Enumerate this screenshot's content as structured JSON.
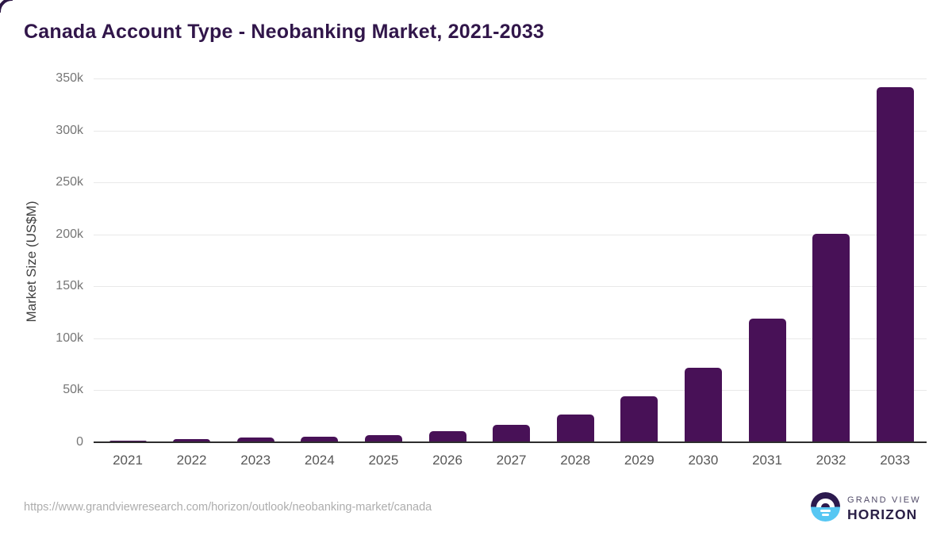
{
  "chart_data": {
    "type": "bar",
    "title": "Canada Account Type - Neobanking Market, 2021-2033",
    "categories": [
      "2021",
      "2022",
      "2023",
      "2024",
      "2025",
      "2026",
      "2027",
      "2028",
      "2029",
      "2030",
      "2031",
      "2032",
      "2033"
    ],
    "values": [
      1800,
      3300,
      4400,
      5400,
      6900,
      11000,
      17000,
      27000,
      44200,
      72000,
      119000,
      200600,
      341600
    ],
    "xlabel": "",
    "ylabel": "Market Size (US$M)",
    "ylim": [
      0,
      350000
    ],
    "ytick_step": 50000,
    "ytick_labels": [
      "0",
      "50k",
      "100k",
      "150k",
      "200k",
      "250k",
      "300k",
      "350k"
    ],
    "grid": "horizontal",
    "legend": "none",
    "bar_color": "#481157"
  },
  "footer": {
    "source_url": "https://www.grandviewresearch.com/horizon/outlook/neobanking-market/canada",
    "logo": {
      "line1": "GRAND VIEW",
      "line2": "HORIZON"
    }
  },
  "colors": {
    "title": "#31164a",
    "bar": "#481157",
    "gridline": "#e9e9e9",
    "axis_line": "#2d2d2d",
    "logo_dark": "#2c1a4e",
    "logo_blue": "#57c7f3"
  }
}
